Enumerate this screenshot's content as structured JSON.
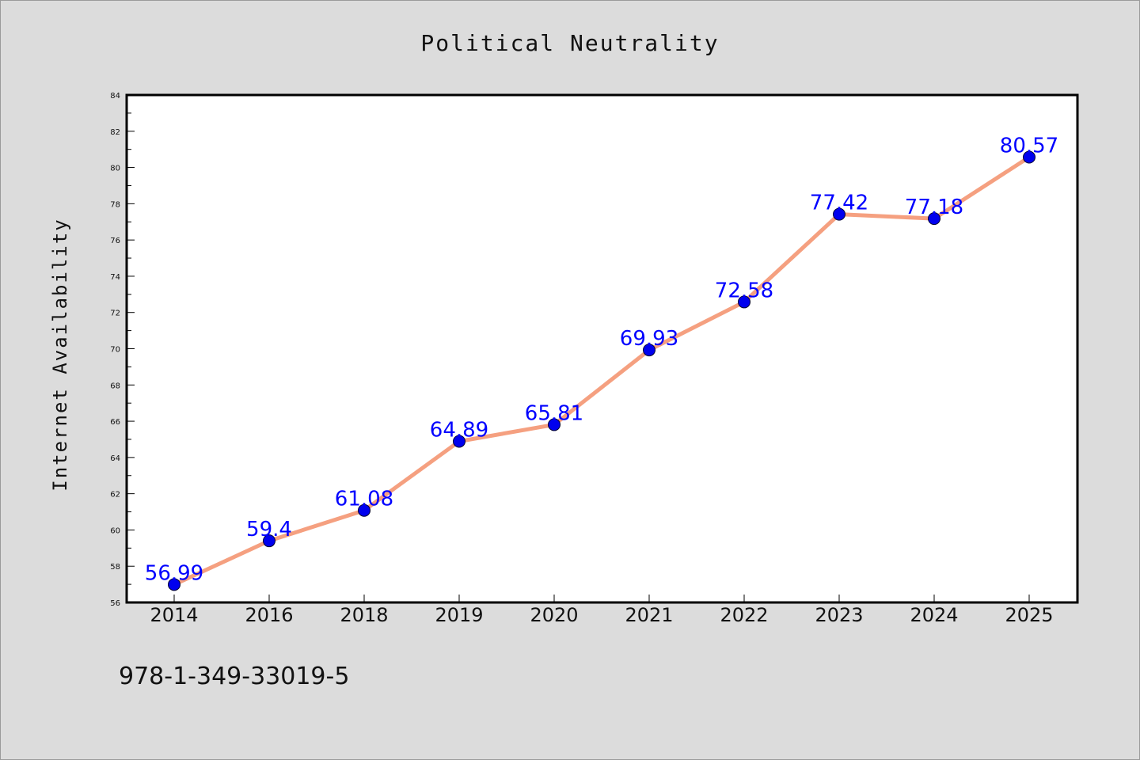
{
  "chart_data": {
    "type": "line",
    "title": "Political Neutrality",
    "xlabel": "",
    "ylabel": "Internet Availability",
    "categories": [
      "2014",
      "2016",
      "2018",
      "2019",
      "2020",
      "2021",
      "2022",
      "2023",
      "2024",
      "2025"
    ],
    "series": [
      {
        "values": [
          56.99,
          59.4,
          61.08,
          64.89,
          65.81,
          69.93,
          72.58,
          77.42,
          77.18,
          80.57
        ],
        "labels": [
          "56.99",
          "59.4",
          "61.08",
          "64.89",
          "65.81",
          "69.93",
          "72.58",
          "77.42",
          "77.18",
          "80.57"
        ],
        "line_color": "#f5a080",
        "marker_color": "#0000ee",
        "label_color": "#0000ff"
      }
    ],
    "ylim": [
      56,
      84
    ],
    "yticks": [
      "56",
      "58",
      "60",
      "62",
      "64",
      "66",
      "68",
      "70",
      "72",
      "74",
      "76",
      "78",
      "80",
      "82",
      "84"
    ],
    "grid": false,
    "legend": "none"
  },
  "footer": {
    "isbn": "978-1-349-33019-5"
  },
  "colors": {
    "background": "#dcdcdc",
    "plot_background": "#ffffff"
  }
}
